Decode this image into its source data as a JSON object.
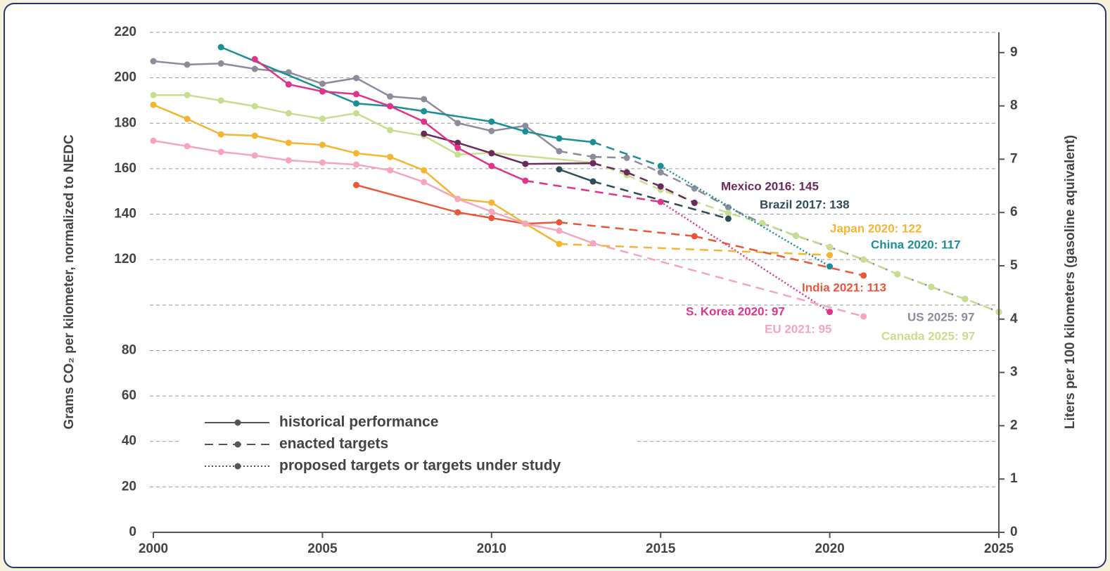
{
  "chart_data": {
    "type": "line",
    "y_label": "Grams CO₂ per kilometer, normalized to NEDC",
    "y2_label": "Liters per 100 kilometers (gasoline aquivalent)",
    "xlim": [
      2000,
      2025
    ],
    "xticks": [
      2000,
      2005,
      2010,
      2015,
      2020,
      2025
    ],
    "ylim": [
      0,
      220
    ],
    "yticks": [
      0,
      20,
      40,
      60,
      80,
      {
        "value": 100,
        "label": null
      },
      120,
      140,
      160,
      180,
      200,
      220
    ],
    "y2lim": [
      0,
      9.38
    ],
    "y2ticks": [
      0,
      1,
      2,
      3,
      4,
      5,
      6,
      7,
      8,
      9
    ],
    "grid": true,
    "legend": [
      {
        "label": "historical performance",
        "style": "solid"
      },
      {
        "label": "enacted targets",
        "style": "dashed"
      },
      {
        "label": "proposed targets or targets under study",
        "style": "dotted"
      }
    ],
    "series": [
      {
        "label": "US 2025: 97",
        "color": "#8c8c9c",
        "segments": [
          {
            "style": "solid",
            "x": [
              2000,
              2001,
              2002,
              2003,
              2004,
              2005,
              2006,
              2007,
              2008,
              2009,
              2010,
              2011,
              2012
            ],
            "values": [
              207.3,
              205.8,
              206.3,
              203.9,
              202.4,
              197.4,
              199.9,
              191.8,
              190.6,
              180.1,
              176.6,
              178.9,
              167.7
            ]
          },
          {
            "style": "dashed",
            "x": [
              2013,
              2014,
              2015,
              2016,
              2017,
              2018,
              2019,
              2020,
              2021,
              2022,
              2023,
              2024,
              2025
            ],
            "values": [
              165.2,
              164.8,
              158.4,
              151.3,
              143,
              136,
              130.5,
              125.5,
              120,
              113.6,
              108,
              102.7,
              97
            ]
          }
        ]
      },
      {
        "label": "Canada 2025: 97",
        "color": "#c9dd8e",
        "segments": [
          {
            "style": "solid",
            "x": [
              2000,
              2001,
              2002,
              2003,
              2004,
              2005,
              2006,
              2007,
              2008,
              2009,
              2010,
              2013
            ],
            "values": [
              192.4,
              192.4,
              190,
              187.5,
              184.4,
              182,
              184.4,
              177,
              174.5,
              166.2,
              167,
              162.7
            ]
          },
          {
            "style": "dashed",
            "x": [
              2014,
              2015,
              2017,
              2018,
              2019,
              2020,
              2021,
              2022,
              2023,
              2024,
              2025
            ],
            "values": [
              157.2,
              150.7,
              140.5,
              136.1,
              130.6,
              125.6,
              120,
              113.6,
              108,
              102.7,
              97
            ]
          }
        ]
      },
      {
        "label": "Mexico 2016: 145",
        "color": "#6b2a5c",
        "segments": [
          {
            "style": "solid",
            "x": [
              2008,
              2009,
              2010,
              2011,
              2013
            ],
            "values": [
              175.4,
              171.4,
              166.8,
              162.1,
              162.4
            ]
          },
          {
            "style": "dashed",
            "x": [
              2014,
              2015,
              2016
            ],
            "values": [
              158.4,
              152.2,
              145
            ]
          }
        ]
      },
      {
        "label": "Brazil 2017: 138",
        "color": "#2e4d58",
        "segments": [
          {
            "style": "solid",
            "x": [
              2012,
              2013
            ],
            "values": [
              159.7,
              154.4
            ]
          },
          {
            "style": "dashed",
            "x": [
              2017
            ],
            "values": [
              138
            ]
          }
        ]
      },
      {
        "label": "China 2020: 117",
        "color": "#1a9096",
        "segments": [
          {
            "style": "solid",
            "x": [
              2002,
              2006,
              2007,
              2008,
              2010,
              2011,
              2012,
              2013
            ],
            "values": [
              213.5,
              188.7,
              187.5,
              185.3,
              180.7,
              176.4,
              173.3,
              171.7
            ]
          },
          {
            "style": "dashed",
            "x": [
              2015
            ],
            "values": [
              161.2
            ]
          },
          {
            "style": "dotted",
            "x": [
              2020
            ],
            "values": [
              117
            ]
          }
        ]
      },
      {
        "label": "S. Korea 2020: 97",
        "color": "#e0338c",
        "segments": [
          {
            "style": "solid",
            "x": [
              2003,
              2004,
              2005,
              2006,
              2007,
              2008,
              2009,
              2010,
              2011
            ],
            "values": [
              208.2,
              197.1,
              194,
              192.8,
              187.5,
              180.7,
              169.2,
              161.2,
              154.7
            ]
          },
          {
            "style": "dashed",
            "x": [
              2015
            ],
            "values": [
              145.4
            ]
          },
          {
            "style": "dotted",
            "x": [
              2020
            ],
            "values": [
              97
            ]
          }
        ]
      },
      {
        "label": "Japan 2020: 122",
        "color": "#f5b431",
        "segments": [
          {
            "style": "solid",
            "x": [
              2000,
              2001,
              2002,
              2003,
              2004,
              2005,
              2006,
              2007,
              2008,
              2009,
              2010,
              2011,
              2012
            ],
            "values": [
              188.1,
              181.9,
              175.1,
              174.5,
              171.4,
              170.5,
              166.8,
              165.2,
              159.3,
              146.7,
              145.1,
              135.8,
              126.9
            ]
          },
          {
            "style": "dashed",
            "x": [
              2020
            ],
            "values": [
              122
            ]
          }
        ]
      },
      {
        "label": "India 2021: 113",
        "color": "#e9573a",
        "segments": [
          {
            "style": "solid",
            "x": [
              2006,
              2009,
              2010,
              2011,
              2012
            ],
            "values": [
              152.8,
              140.8,
              138.3,
              135.8,
              136.4
            ]
          },
          {
            "style": "dashed",
            "x": [
              2016,
              2021
            ],
            "values": [
              130.3,
              113
            ]
          }
        ]
      },
      {
        "label": "EU 2021: 95",
        "color": "#f4a6c0",
        "segments": [
          {
            "style": "solid",
            "x": [
              2000,
              2001,
              2002,
              2003,
              2004,
              2005,
              2006,
              2007,
              2008,
              2009,
              2010,
              2011,
              2012,
              2013
            ],
            "values": [
              172.3,
              169.9,
              167.4,
              165.8,
              163.7,
              162.7,
              161.8,
              159.3,
              154.1,
              146.7,
              141.1,
              135.8,
              132.7,
              127.2
            ]
          },
          {
            "style": "dashed",
            "x": [
              2021
            ],
            "values": [
              95
            ]
          }
        ]
      }
    ]
  }
}
